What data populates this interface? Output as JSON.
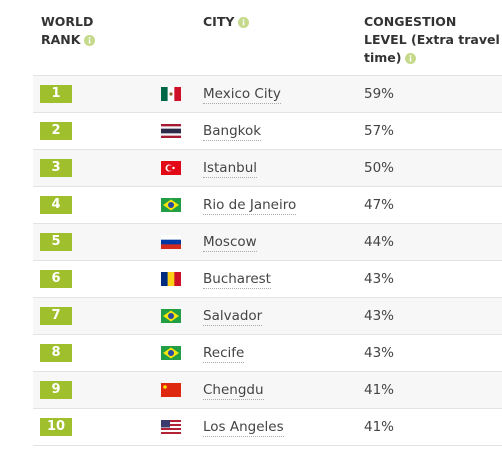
{
  "table": {
    "headers": [
      "WORLD RANK",
      "CITY",
      "CONGESTION LEVEL (Extra travel time)"
    ],
    "rows": [
      [
        "1",
        "Mexico City",
        "59%"
      ],
      [
        "2",
        "Bangkok",
        "57%"
      ],
      [
        "3",
        "Istanbul",
        "50%"
      ],
      [
        "4",
        "Rio de Janeiro",
        "47%"
      ],
      [
        "5",
        "Moscow",
        "44%"
      ],
      [
        "6",
        "Bucharest",
        "43%"
      ],
      [
        "7",
        "Salvador",
        "43%"
      ],
      [
        "8",
        "Recife",
        "43%"
      ],
      [
        "9",
        "Chengdu",
        "41%"
      ],
      [
        "10",
        "Los Angeles",
        "41%"
      ]
    ]
  }
}
